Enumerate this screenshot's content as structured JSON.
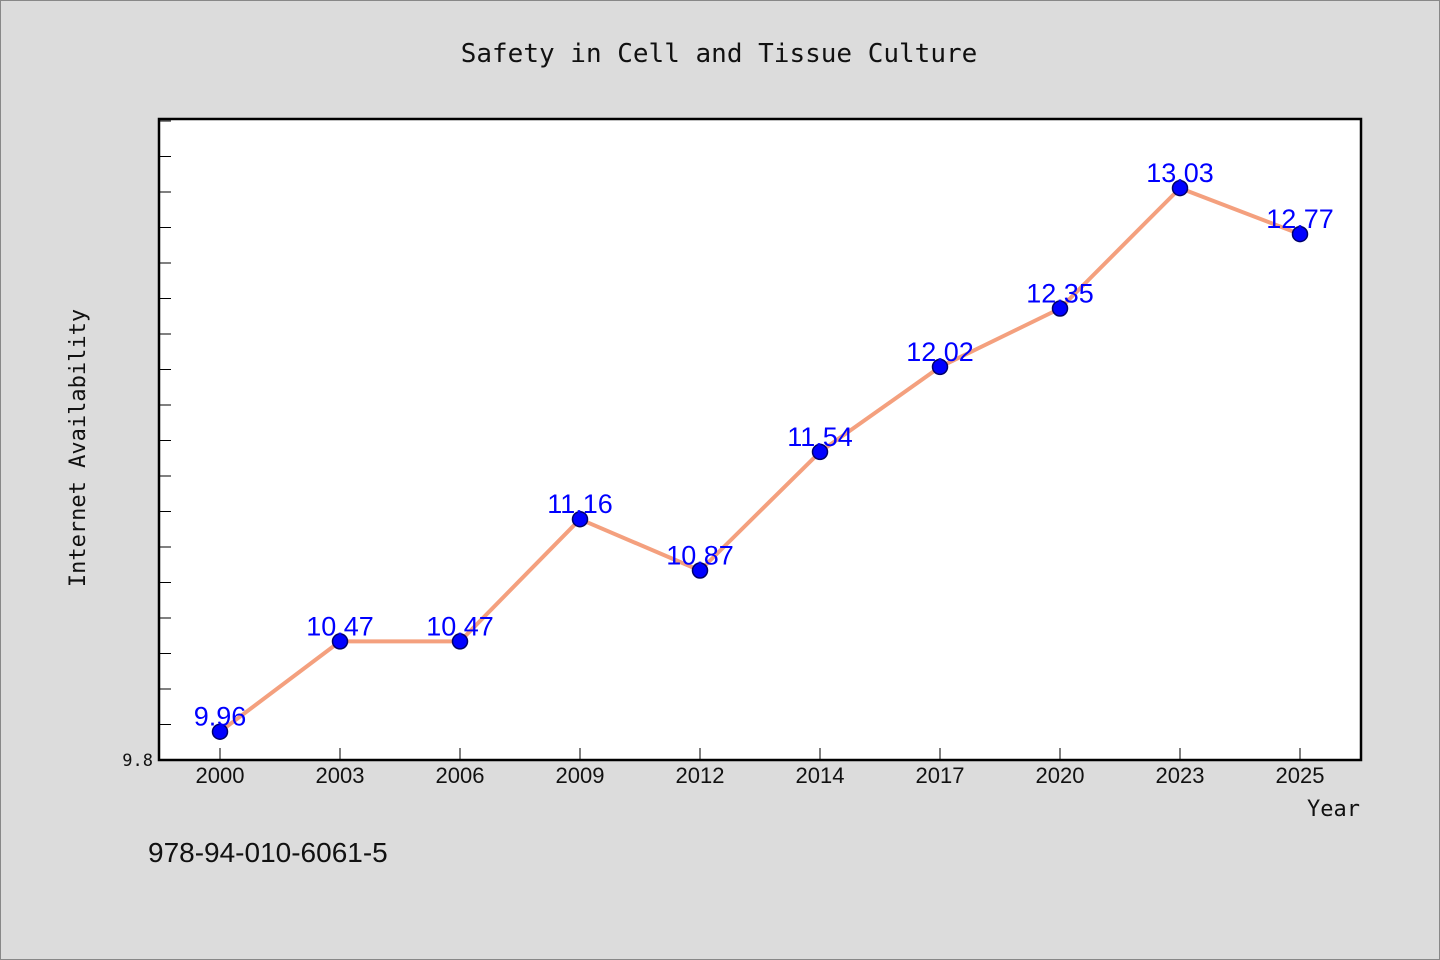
{
  "chart_data": {
    "type": "line",
    "title": "Safety in Cell and Tissue Culture",
    "xlabel": "Year",
    "ylabel": "Internet Availability",
    "categories": [
      "2000",
      "2003",
      "2006",
      "2009",
      "2012",
      "2014",
      "2017",
      "2020",
      "2023",
      "2025"
    ],
    "series": [
      {
        "values": [
          9.96,
          10.47,
          10.47,
          11.16,
          10.87,
          11.54,
          12.02,
          12.35,
          13.03,
          12.77
        ],
        "data_labels": [
          "9.96",
          "10.47",
          "10.47",
          "11.16",
          "10.87",
          "11.54",
          "12.02",
          "12.35",
          "13.03",
          "12.77"
        ]
      }
    ],
    "ylim": [
      9.8,
      13.42
    ],
    "ytick_labels": [
      "9.8"
    ],
    "grid": false,
    "legend": "none",
    "colors": {
      "line": "#f4a07e",
      "marker": "#0000ff",
      "data_label": "#0000ff",
      "background": "#dcdcdc",
      "plot_background": "#ffffff"
    }
  },
  "footer": {
    "isbn": "978-94-010-6061-5"
  }
}
